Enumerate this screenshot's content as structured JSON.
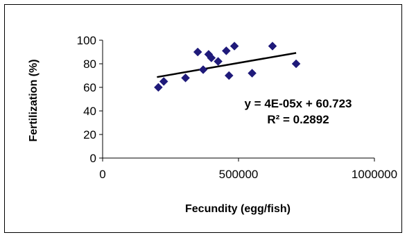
{
  "chart_data": {
    "type": "scatter",
    "title": "",
    "xlabel": "Fecundity (egg/fish)",
    "ylabel": "Fertilization (%)",
    "xlim": [
      0,
      1000000
    ],
    "ylim": [
      0,
      100
    ],
    "x_ticks": [
      0,
      500000,
      1000000
    ],
    "y_ticks": [
      0,
      20,
      40,
      60,
      80,
      100
    ],
    "x_tick_labels": [
      "0",
      "500000",
      "1000000"
    ],
    "y_tick_labels": [
      "0",
      "20",
      "40",
      "60",
      "80",
      "100"
    ],
    "grid": false,
    "legend": "none",
    "marker_color": "#1f1a7a",
    "series": [
      {
        "x": [
          205000,
          225000,
          305000,
          350000,
          370000,
          390000,
          400000,
          425000,
          455000,
          465000,
          485000,
          550000,
          625000,
          712000
        ],
        "y": [
          60,
          65,
          68,
          90,
          75,
          88,
          85,
          82,
          91,
          70,
          95,
          72,
          95,
          80
        ]
      }
    ],
    "trendline": {
      "slope": 4e-05,
      "intercept": 60.723,
      "x_range": [
        200000,
        712000
      ],
      "color": "#000000",
      "equation": "y = 4E-05x + 60.723",
      "r_squared": "R² = 0.2892"
    }
  }
}
